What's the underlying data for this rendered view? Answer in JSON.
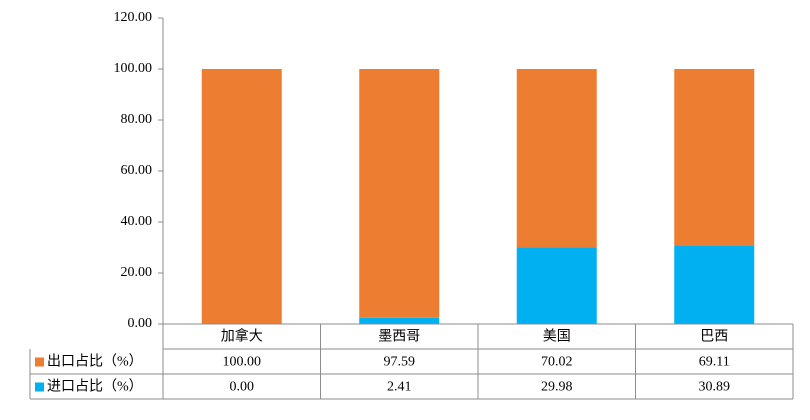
{
  "chart_data": {
    "type": "stacked-bar",
    "categories": [
      "加拿大",
      "墨西哥",
      "美国",
      "巴西"
    ],
    "series": [
      {
        "name": "出口占比（%）",
        "color": "#ed7d31",
        "values": [
          100,
          97.59,
          70.02,
          69.11
        ],
        "value_labels": [
          "100.00",
          "97.59",
          "70.02",
          "69.11"
        ]
      },
      {
        "name": "进口占比（%）",
        "color": "#00b0f0",
        "values": [
          0,
          2.41,
          29.98,
          30.89
        ],
        "value_labels": [
          "0.00",
          "2.41",
          "29.98",
          "30.89"
        ]
      }
    ],
    "ylim": [
      0,
      120
    ],
    "yticks": [
      {
        "value": 0,
        "label": "0.00"
      },
      {
        "value": 20,
        "label": "20.00"
      },
      {
        "value": 40,
        "label": "40.00"
      },
      {
        "value": 60,
        "label": "60.00"
      },
      {
        "value": 80,
        "label": "80.00"
      },
      {
        "value": 100,
        "label": "100.00"
      },
      {
        "value": 120,
        "label": "120.00"
      }
    ],
    "grid": false
  }
}
